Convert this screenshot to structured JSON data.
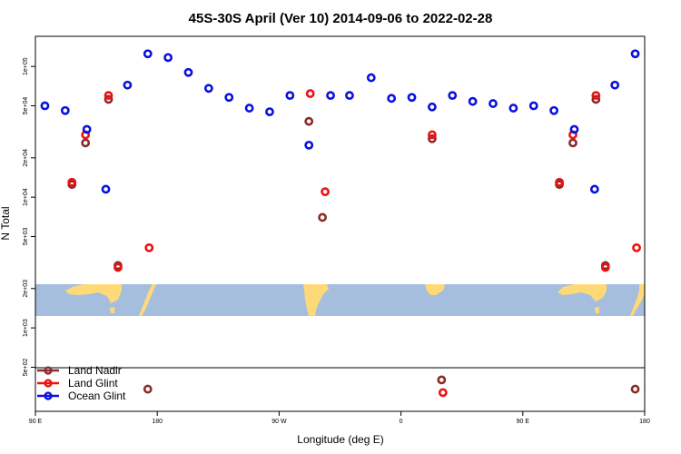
{
  "chart_data": {
    "type": "scatter",
    "title": "45S-30S April (Ver 10)   2014-09-06 to 2022-02-28",
    "xlabel": "Longitude (deg E)",
    "ylabel": "N Total",
    "x_scale": "linear",
    "y_scale": "log",
    "xlim": [
      90,
      540
    ],
    "ylim": [
      230,
      170000
    ],
    "x_ticks": [
      {
        "value": 90,
        "label": "90 E"
      },
      {
        "value": 180,
        "label": "180"
      },
      {
        "value": 270,
        "label": "90 W"
      },
      {
        "value": 360,
        "label": "0"
      },
      {
        "value": 450,
        "label": "90 E"
      },
      {
        "value": 540,
        "label": "180"
      }
    ],
    "y_ticks": [
      {
        "value": 500,
        "label": "5e+02"
      },
      {
        "value": 1000,
        "label": "1e+03"
      },
      {
        "value": 2000,
        "label": "2e+03"
      },
      {
        "value": 5000,
        "label": "5e+03"
      },
      {
        "value": 10000,
        "label": "1e+04"
      },
      {
        "value": 20000,
        "label": "2e+04"
      },
      {
        "value": 50000,
        "label": "5e+04"
      },
      {
        "value": 100000,
        "label": "1e+05"
      }
    ],
    "grid": false,
    "legend_position": "bottom-left",
    "background_map": {
      "lat_range": "45S-30S",
      "ocean_color": "#a6bedd",
      "land_color": "#fed978"
    },
    "series": [
      {
        "name": "Land Nadir",
        "color": "#8b2b2b",
        "points": [
          {
            "x": 117,
            "y": 12500
          },
          {
            "x": 127,
            "y": 26000
          },
          {
            "x": 144,
            "y": 56000
          },
          {
            "x": 151,
            "y": 3000
          },
          {
            "x": 173,
            "y": 340
          },
          {
            "x": 292,
            "y": 38000
          },
          {
            "x": 302,
            "y": 7000
          },
          {
            "x": 383,
            "y": 28000
          },
          {
            "x": 390,
            "y": 400
          },
          {
            "x": 477,
            "y": 12500
          },
          {
            "x": 487,
            "y": 26000
          },
          {
            "x": 504,
            "y": 56000
          },
          {
            "x": 511,
            "y": 3000
          },
          {
            "x": 533,
            "y": 340
          }
        ]
      },
      {
        "name": "Land Glint",
        "color": "#ee1111",
        "points": [
          {
            "x": 117,
            "y": 13000
          },
          {
            "x": 127,
            "y": 30000
          },
          {
            "x": 144,
            "y": 60000
          },
          {
            "x": 151,
            "y": 2900
          },
          {
            "x": 174,
            "y": 4100
          },
          {
            "x": 293,
            "y": 62000
          },
          {
            "x": 304,
            "y": 11000
          },
          {
            "x": 383,
            "y": 30000
          },
          {
            "x": 391,
            "y": 320
          },
          {
            "x": 477,
            "y": 13000
          },
          {
            "x": 487,
            "y": 30000
          },
          {
            "x": 504,
            "y": 60000
          },
          {
            "x": 511,
            "y": 2900
          },
          {
            "x": 534,
            "y": 4100
          }
        ]
      },
      {
        "name": "Ocean Glint",
        "color": "#0a11dd",
        "points": [
          {
            "x": 97,
            "y": 50000
          },
          {
            "x": 112,
            "y": 46000
          },
          {
            "x": 128,
            "y": 33000
          },
          {
            "x": 142,
            "y": 11500
          },
          {
            "x": 158,
            "y": 72000
          },
          {
            "x": 173,
            "y": 125000
          },
          {
            "x": 188,
            "y": 117000
          },
          {
            "x": 203,
            "y": 90000
          },
          {
            "x": 218,
            "y": 68000
          },
          {
            "x": 233,
            "y": 58000
          },
          {
            "x": 248,
            "y": 48000
          },
          {
            "x": 263,
            "y": 45000
          },
          {
            "x": 278,
            "y": 60000
          },
          {
            "x": 292,
            "y": 25000
          },
          {
            "x": 308,
            "y": 60000
          },
          {
            "x": 322,
            "y": 60000
          },
          {
            "x": 338,
            "y": 82000
          },
          {
            "x": 353,
            "y": 57000
          },
          {
            "x": 368,
            "y": 58000
          },
          {
            "x": 383,
            "y": 49000
          },
          {
            "x": 398,
            "y": 60000
          },
          {
            "x": 413,
            "y": 54000
          },
          {
            "x": 428,
            "y": 52000
          },
          {
            "x": 443,
            "y": 48000
          },
          {
            "x": 458,
            "y": 50000
          },
          {
            "x": 473,
            "y": 46000
          },
          {
            "x": 488,
            "y": 33000
          },
          {
            "x": 503,
            "y": 11500
          },
          {
            "x": 518,
            "y": 72000
          },
          {
            "x": 533,
            "y": 125000
          }
        ]
      }
    ]
  }
}
